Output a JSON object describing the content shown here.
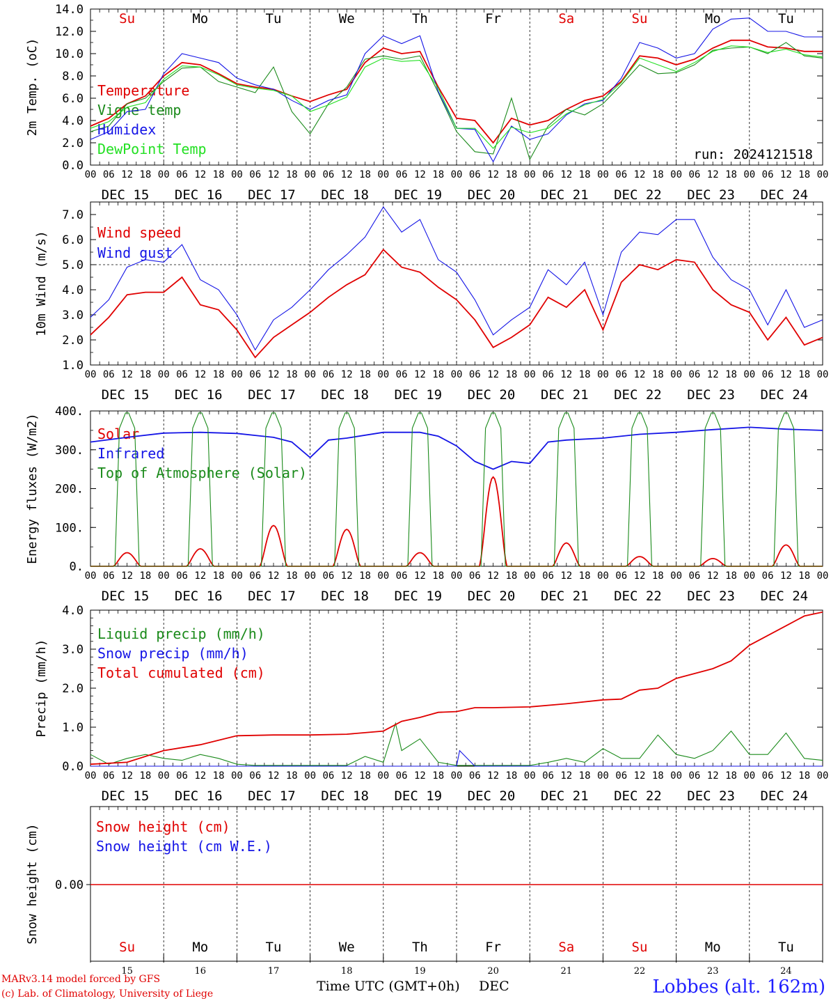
{
  "app": {
    "credit_line1": "MARv3.14 model forced by GFS",
    "credit_line2": "(c) Lab. of Climatology, University of Liege",
    "station": "Lobbes (alt. 162m)",
    "time_label": "Time UTC (GMT+0h)",
    "month_label": "DEC",
    "run_label": "run: 2024121518"
  },
  "days": {
    "weekday_labels": [
      "Su",
      "Mo",
      "Tu",
      "We",
      "Th",
      "Fr",
      "Sa",
      "Su",
      "Mo",
      "Tu"
    ],
    "weekend_flags": [
      true,
      false,
      false,
      false,
      false,
      false,
      true,
      true,
      false,
      false
    ],
    "date_labels": [
      "DEC 15",
      "DEC 16",
      "DEC 17",
      "DEC 18",
      "DEC 19",
      "DEC 20",
      "DEC 21",
      "DEC 22",
      "DEC 23",
      "DEC 24"
    ],
    "day_numbers": [
      "15",
      "16",
      "17",
      "18",
      "19",
      "20",
      "21",
      "22",
      "23",
      "24"
    ],
    "hour_labels": [
      "00",
      "06",
      "12",
      "18"
    ],
    "final_hour_label": "00"
  },
  "colors": {
    "red": "#e00000",
    "green": "#1a8a1a",
    "blue": "#1414e6",
    "lightgreen": "#22e022",
    "weekend": "#e00000",
    "weekday": "#000000"
  },
  "chart_data": [
    {
      "type": "line",
      "ylabel": "2m Temp. (oC)",
      "ylim": [
        0,
        14
      ],
      "yticks": [
        "0.0",
        "2.0",
        "4.0",
        "6.0",
        "8.0",
        "10.0",
        "12.0",
        "14.0"
      ],
      "x_unit": "hours since DEC 15 00 UTC",
      "series": [
        {
          "name": "Temperature",
          "color": "red",
          "x": [
            0,
            6,
            12,
            18,
            24,
            30,
            36,
            42,
            48,
            54,
            60,
            66,
            72,
            78,
            84,
            90,
            96,
            102,
            108,
            114,
            120,
            126,
            132,
            138,
            144,
            150,
            156,
            162,
            168,
            174,
            180,
            186,
            192,
            198,
            204,
            210,
            216,
            222,
            228,
            234,
            240
          ],
          "values": [
            3.5,
            4.2,
            5.5,
            6.2,
            8.0,
            9.2,
            9.0,
            8.2,
            7.3,
            7.0,
            6.8,
            6.2,
            5.7,
            6.3,
            6.8,
            9.2,
            10.5,
            10.0,
            10.2,
            7.0,
            4.2,
            4.0,
            2.0,
            4.2,
            3.6,
            4.0,
            5.0,
            5.8,
            6.2,
            7.5,
            9.8,
            9.6,
            9.0,
            9.5,
            10.5,
            11.2,
            11.2,
            10.6,
            10.5,
            10.2,
            10.2
          ]
        },
        {
          "name": "Vigne temp",
          "color": "green",
          "x": [
            0,
            6,
            12,
            18,
            24,
            30,
            36,
            42,
            48,
            54,
            60,
            66,
            72,
            78,
            84,
            90,
            96,
            102,
            108,
            114,
            120,
            126,
            132,
            138,
            144,
            150,
            156,
            162,
            168,
            174,
            180,
            186,
            192,
            198,
            204,
            210,
            216,
            222,
            228,
            234,
            240
          ],
          "values": [
            3.0,
            3.5,
            5.5,
            6.0,
            7.5,
            8.7,
            8.8,
            7.5,
            7.0,
            6.5,
            8.8,
            4.8,
            2.8,
            5.5,
            7.0,
            9.5,
            9.8,
            9.5,
            9.8,
            6.5,
            3.0,
            1.2,
            1.0,
            6.0,
            0.5,
            3.5,
            5.0,
            4.5,
            5.5,
            7.2,
            9.0,
            8.2,
            8.3,
            9.0,
            10.3,
            10.5,
            10.6,
            10.0,
            11.0,
            9.8,
            9.6
          ]
        },
        {
          "name": "Humidex",
          "color": "blue",
          "x": [
            0,
            6,
            12,
            18,
            24,
            30,
            36,
            42,
            48,
            54,
            60,
            66,
            72,
            78,
            84,
            90,
            96,
            102,
            108,
            114,
            120,
            126,
            132,
            138,
            144,
            150,
            156,
            162,
            168,
            174,
            180,
            186,
            192,
            198,
            204,
            210,
            216,
            222,
            228,
            234,
            240
          ],
          "values": [
            2.3,
            3.0,
            4.8,
            5.0,
            8.2,
            10.0,
            9.6,
            9.2,
            7.8,
            7.2,
            6.8,
            5.8,
            5.0,
            5.8,
            6.3,
            10.0,
            11.6,
            10.9,
            11.6,
            6.6,
            3.3,
            3.2,
            0.3,
            3.5,
            2.3,
            2.8,
            4.5,
            5.5,
            5.8,
            7.8,
            11.0,
            10.5,
            9.6,
            10.0,
            12.2,
            13.1,
            13.2,
            12.0,
            12.0,
            11.5,
            11.5
          ]
        },
        {
          "name": "DewPoint Temp",
          "color": "lightgreen",
          "x": [
            0,
            6,
            12,
            18,
            24,
            30,
            36,
            42,
            48,
            54,
            60,
            66,
            72,
            78,
            84,
            90,
            96,
            102,
            108,
            114,
            120,
            126,
            132,
            138,
            144,
            150,
            156,
            162,
            168,
            174,
            180,
            186,
            192,
            198,
            204,
            210,
            216,
            222,
            228,
            234,
            240
          ],
          "values": [
            3.3,
            3.9,
            5.2,
            5.6,
            7.7,
            8.9,
            8.8,
            8.1,
            7.2,
            6.9,
            6.7,
            6.2,
            4.8,
            5.4,
            6.1,
            8.8,
            9.6,
            9.3,
            9.4,
            6.9,
            3.3,
            3.3,
            1.5,
            3.4,
            2.9,
            3.3,
            4.6,
            5.4,
            5.9,
            7.4,
            9.6,
            9.0,
            8.4,
            9.2,
            10.2,
            10.7,
            10.6,
            10.1,
            10.4,
            9.9,
            9.7
          ]
        }
      ]
    },
    {
      "type": "line",
      "ylabel": "10m Wind (m/s)",
      "ylim": [
        1,
        7.5
      ],
      "yticks": [
        "1.0",
        "2.0",
        "3.0",
        "4.0",
        "5.0",
        "6.0",
        "7.0"
      ],
      "reference_line": 5.0,
      "x_unit": "hours since DEC 15 00 UTC",
      "series": [
        {
          "name": "Wind speed",
          "color": "red",
          "x": [
            0,
            6,
            12,
            18,
            24,
            30,
            36,
            42,
            48,
            54,
            60,
            66,
            72,
            78,
            84,
            90,
            96,
            102,
            108,
            114,
            120,
            126,
            132,
            138,
            144,
            150,
            156,
            162,
            168,
            174,
            180,
            186,
            192,
            198,
            204,
            210,
            216,
            222,
            228,
            234,
            240
          ],
          "values": [
            2.2,
            2.9,
            3.8,
            3.9,
            3.9,
            4.5,
            3.4,
            3.2,
            2.4,
            1.3,
            2.1,
            2.6,
            3.1,
            3.7,
            4.2,
            4.6,
            5.6,
            4.9,
            4.7,
            4.1,
            3.6,
            2.8,
            1.7,
            2.1,
            2.6,
            3.7,
            3.3,
            4.0,
            2.4,
            4.3,
            5.0,
            4.8,
            5.2,
            5.1,
            4.0,
            3.4,
            3.1,
            2.0,
            2.9,
            1.8,
            2.1
          ]
        },
        {
          "name": "Wind gust",
          "color": "blue",
          "x": [
            0,
            6,
            12,
            18,
            24,
            30,
            36,
            42,
            48,
            54,
            60,
            66,
            72,
            78,
            84,
            90,
            96,
            102,
            108,
            114,
            120,
            126,
            132,
            138,
            144,
            150,
            156,
            162,
            168,
            174,
            180,
            186,
            192,
            198,
            204,
            210,
            216,
            222,
            228,
            234,
            240
          ],
          "values": [
            2.9,
            3.6,
            4.9,
            5.2,
            5.1,
            5.8,
            4.4,
            4.0,
            3.0,
            1.6,
            2.8,
            3.3,
            4.0,
            4.8,
            5.4,
            6.1,
            7.3,
            6.3,
            6.8,
            5.2,
            4.7,
            3.6,
            2.2,
            2.8,
            3.3,
            4.8,
            4.2,
            5.1,
            3.0,
            5.5,
            6.3,
            6.2,
            6.8,
            6.8,
            5.3,
            4.4,
            4.0,
            2.6,
            4.0,
            2.5,
            2.8
          ]
        }
      ]
    },
    {
      "type": "line",
      "ylabel": "Energy fluxes (W/m2)",
      "ylim": [
        0,
        400
      ],
      "yticks": [
        "0.",
        "100.",
        "200.",
        "300.",
        "400."
      ],
      "x_unit": "hours since DEC 15 00 UTC",
      "series": [
        {
          "name": "Solar",
          "color": "red",
          "daily_peak_hour": 12,
          "daily_peaks": [
            35,
            45,
            105,
            95,
            35,
            230,
            60,
            25,
            20,
            55
          ]
        },
        {
          "name": "Infrared",
          "color": "blue",
          "x": [
            0,
            12,
            24,
            36,
            48,
            60,
            66,
            72,
            78,
            84,
            96,
            108,
            114,
            120,
            126,
            132,
            138,
            144,
            150,
            156,
            168,
            180,
            192,
            204,
            216,
            228,
            240
          ],
          "values": [
            320,
            332,
            343,
            345,
            342,
            332,
            320,
            280,
            325,
            330,
            345,
            345,
            335,
            310,
            270,
            250,
            270,
            265,
            320,
            325,
            330,
            340,
            345,
            352,
            358,
            353,
            350
          ]
        },
        {
          "name": "Top of Atmosphere (Solar)",
          "color": "green",
          "daily_peak_hour": 12,
          "daily_peaks": [
            395,
            395,
            395,
            395,
            395,
            395,
            395,
            395,
            395,
            395
          ]
        }
      ]
    },
    {
      "type": "line",
      "ylabel": "Precip (mm/h)",
      "ylim": [
        0,
        4
      ],
      "yticks": [
        "0.0",
        "1.0",
        "2.0",
        "3.0",
        "4.0"
      ],
      "x_unit": "hours since DEC 15 00 UTC",
      "series": [
        {
          "name": "Liquid precip (mm/h)",
          "color": "green",
          "x": [
            0,
            6,
            12,
            18,
            24,
            30,
            36,
            42,
            48,
            54,
            60,
            66,
            72,
            84,
            90,
            96,
            100,
            102,
            108,
            114,
            120,
            126,
            132,
            138,
            144,
            150,
            156,
            162,
            168,
            174,
            180,
            186,
            192,
            198,
            204,
            210,
            216,
            222,
            228,
            234,
            240
          ],
          "values": [
            0.3,
            0.05,
            0.2,
            0.3,
            0.2,
            0.15,
            0.3,
            0.2,
            0.05,
            0.02,
            0.02,
            0.02,
            0.02,
            0.02,
            0.25,
            0.1,
            1.1,
            0.4,
            0.7,
            0.1,
            0.02,
            0.02,
            0.02,
            0.02,
            0.02,
            0.1,
            0.2,
            0.1,
            0.45,
            0.2,
            0.2,
            0.8,
            0.3,
            0.2,
            0.4,
            0.9,
            0.3,
            0.3,
            0.85,
            0.2,
            0.15
          ]
        },
        {
          "name": "Snow precip (mm/h)",
          "color": "blue",
          "x": [
            0,
            114,
            118,
            120,
            121,
            126,
            132,
            240
          ],
          "values": [
            0,
            0,
            0,
            0,
            0.4,
            0,
            0,
            0
          ]
        },
        {
          "name": "Total cumulated (cm)",
          "color": "red",
          "x": [
            0,
            12,
            24,
            36,
            48,
            60,
            72,
            84,
            96,
            102,
            108,
            114,
            120,
            126,
            132,
            144,
            156,
            168,
            174,
            180,
            186,
            192,
            204,
            210,
            216,
            222,
            228,
            234,
            240
          ],
          "values": [
            0.05,
            0.1,
            0.4,
            0.55,
            0.78,
            0.8,
            0.8,
            0.82,
            0.9,
            1.15,
            1.25,
            1.38,
            1.4,
            1.5,
            1.5,
            1.52,
            1.6,
            1.7,
            1.72,
            1.95,
            2.0,
            2.25,
            2.5,
            2.7,
            3.1,
            3.35,
            3.6,
            3.85,
            3.95
          ]
        }
      ]
    },
    {
      "type": "line",
      "ylabel": "Snow height (cm)",
      "yticks": [
        "0.00"
      ],
      "x_unit": "hours since DEC 15 00 UTC",
      "series": [
        {
          "name": "Snow height (cm)",
          "color": "red",
          "x": [
            0,
            240
          ],
          "values": [
            0,
            0
          ]
        },
        {
          "name": "Snow height (cm W.E.)",
          "color": "blue",
          "x": [
            0,
            240
          ],
          "values": [
            0,
            0
          ]
        }
      ]
    }
  ]
}
